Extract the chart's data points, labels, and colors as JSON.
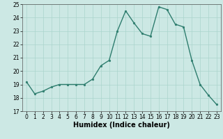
{
  "x": [
    0,
    1,
    2,
    3,
    4,
    5,
    6,
    7,
    8,
    9,
    10,
    11,
    12,
    13,
    14,
    15,
    16,
    17,
    18,
    19,
    20,
    21,
    22,
    23
  ],
  "y": [
    19.2,
    18.3,
    18.5,
    18.8,
    19.0,
    19.0,
    19.0,
    19.0,
    19.4,
    20.4,
    20.8,
    23.0,
    24.5,
    23.6,
    22.8,
    22.6,
    24.8,
    24.6,
    23.5,
    23.3,
    20.8,
    19.0,
    18.2,
    17.5
  ],
  "line_color": "#2e7d6e",
  "marker": "o",
  "marker_size": 1.8,
  "bg_color": "#cce8e4",
  "grid_color": "#aad4cc",
  "xlabel": "Humidex (Indice chaleur)",
  "ylim": [
    17,
    25
  ],
  "xlim": [
    -0.5,
    23.5
  ],
  "xticks": [
    0,
    1,
    2,
    3,
    4,
    5,
    6,
    7,
    8,
    9,
    10,
    11,
    12,
    13,
    14,
    15,
    16,
    17,
    18,
    19,
    20,
    21,
    22,
    23
  ],
  "yticks": [
    17,
    18,
    19,
    20,
    21,
    22,
    23,
    24,
    25
  ],
  "tick_fontsize": 5.5,
  "xlabel_fontsize": 7.0,
  "linewidth": 1.0
}
